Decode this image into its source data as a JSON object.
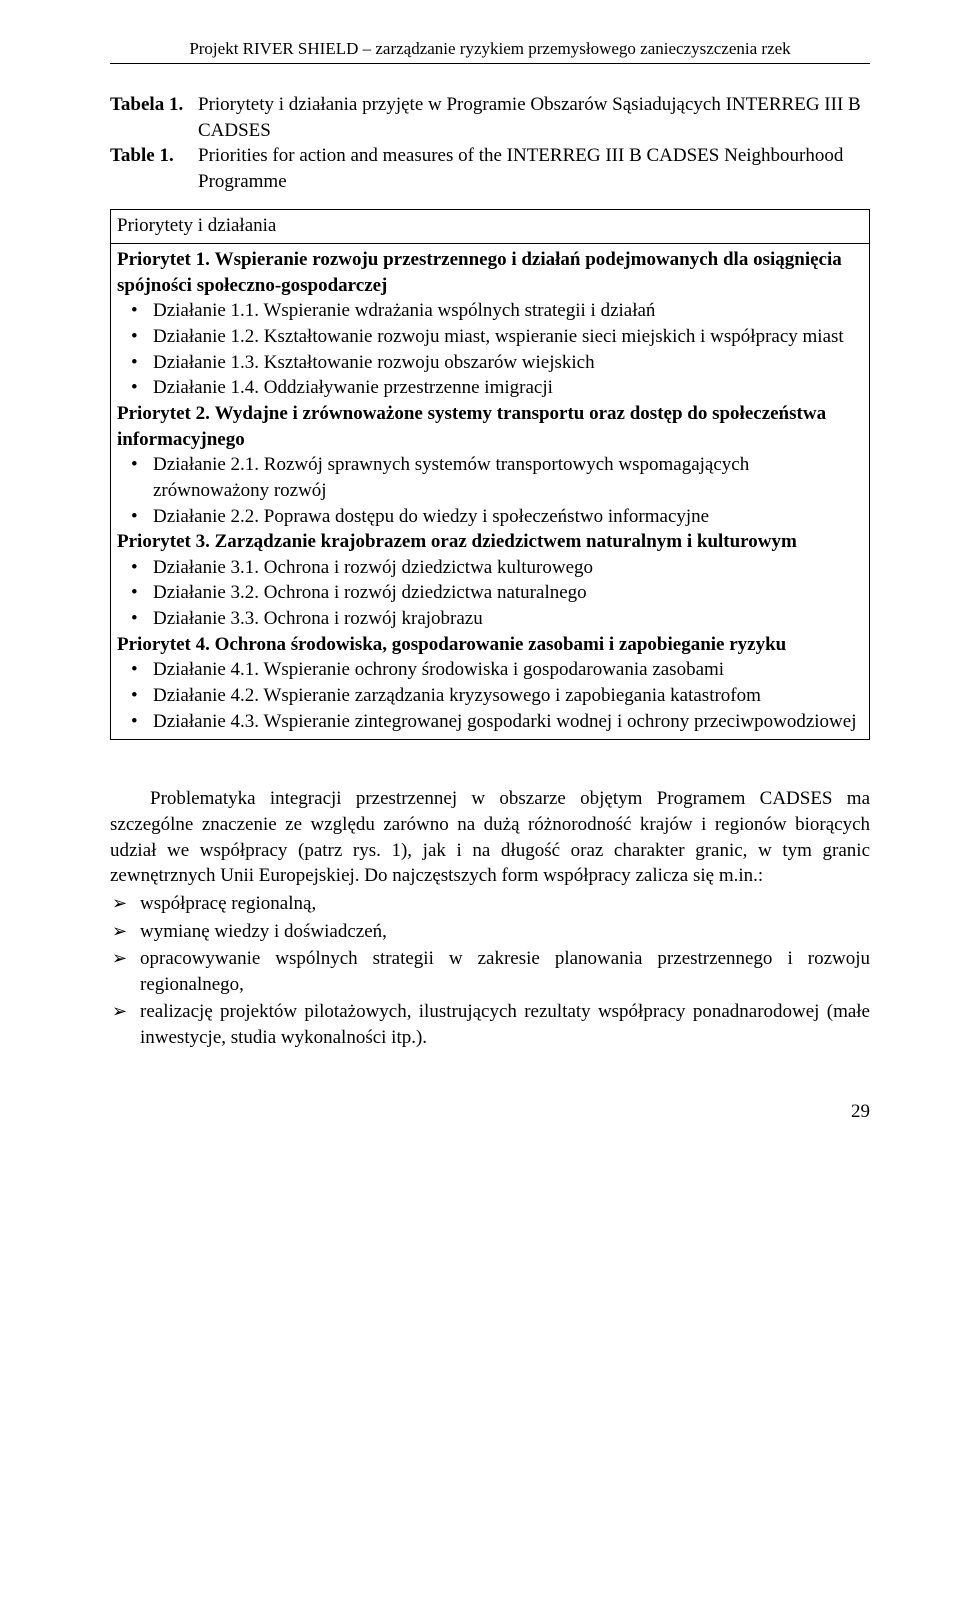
{
  "header": {
    "running_title": "Projekt RIVER SHIELD – zarządzanie ryzykiem przemysłowego zanieczyszczenia rzek"
  },
  "table_titles": {
    "row1_label": "Tabela 1.",
    "row1_text": "Priorytety i działania przyjęte w Programie Obszarów Sąsiadujących INTERREG III B CADSES",
    "row2_label": "Table  1.",
    "row2_text": "Priorities for action and measures of the INTERREG III B CADSES Neighbourhood Programme"
  },
  "table": {
    "header_cell": "Priorytety i działania",
    "p1": {
      "title_a": "Priorytet 1.",
      "title_b": "Wspieranie rozwoju przestrzennego i działań podejmowanych dla osiągnięcia spójności społeczno-gospodarczej",
      "items": [
        "Działanie 1.1. Wspieranie wdrażania wspólnych strategii i działań",
        "Działanie 1.2. Kształtowanie rozwoju miast, wspieranie sieci miejskich i współpracy miast",
        "Działanie 1.3. Kształtowanie rozwoju obszarów wiejskich",
        "Działanie 1.4. Oddziaływanie przestrzenne imigracji"
      ]
    },
    "p2": {
      "title_a": "Priorytet 2.",
      "title_b": "Wydajne i zrównoważone systemy transportu oraz dostęp do społeczeństwa informacyjnego",
      "items": [
        "Działanie 2.1. Rozwój sprawnych systemów transportowych wspomagających zrównoważony rozwój",
        "Działanie 2.2. Poprawa dostępu do wiedzy i społeczeństwo informacyjne"
      ]
    },
    "p3": {
      "title_a": "Priorytet 3. Zarządzanie krajobrazem oraz dziedzictwem naturalnym i kulturowym",
      "items": [
        "Działanie 3.1. Ochrona i rozwój dziedzictwa kulturowego",
        "Działanie 3.2. Ochrona i rozwój dziedzictwa naturalnego",
        "Działanie 3.3. Ochrona i rozwój krajobrazu"
      ]
    },
    "p4": {
      "title_a": "Priorytet 4. Ochrona środowiska, gospodarowanie zasobami i zapobieganie ryzyku",
      "items": [
        "Działanie 4.1. Wspieranie ochrony środowiska i gospodarowania zasobami",
        "Działanie 4.2. Wspieranie zarządzania kryzysowego i zapobiegania katastrofom",
        "Działanie 4.3. Wspieranie zintegrowanej gospodarki wodnej i ochrony przeciwpowodziowej"
      ]
    }
  },
  "body": {
    "para1": "Problematyka integracji przestrzennej w obszarze objętym Programem CADSES ma szczególne znaczenie ze względu zarówno na dużą różnorodność krajów i regionów biorących udział we współpracy (patrz rys. 1), jak i na długość oraz charakter granic, w tym granic zewnętrznych Unii Europejskiej. Do najczęstszych form współpracy zalicza się m.in.:",
    "items": [
      "współpracę regionalną,",
      "wymianę wiedzy i doświadczeń,",
      "opracowywanie wspólnych strategii w zakresie planowania przestrzennego i rozwoju regionalnego,",
      "realizację projektów pilotażowych, ilustrujących rezultaty współpracy ponadnarodowej (małe inwestycje, studia wykonalności itp.)."
    ]
  },
  "page_number": "29"
}
